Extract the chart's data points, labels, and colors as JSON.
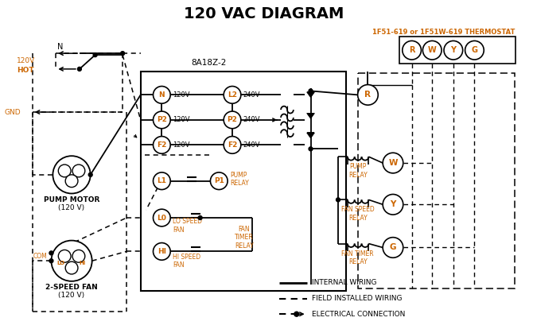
{
  "title": "120 VAC DIAGRAM",
  "title_fontsize": 14,
  "title_fontweight": "bold",
  "background_color": "#ffffff",
  "line_color": "#000000",
  "orange_color": "#cc6600",
  "thermostat_label": "1F51-619 or 1F51W-619 THERMOSTAT",
  "controller_label": "8A18Z-2",
  "legend_items": [
    {
      "label": "INTERNAL WIRING",
      "style": "solid"
    },
    {
      "label": "FIELD INSTALLED WIRING",
      "style": "dashed"
    },
    {
      "label": "ELECTRICAL CONNECTION",
      "style": "dot_arrow"
    }
  ],
  "terminal_circles": [
    "R",
    "W",
    "Y",
    "G"
  ],
  "left_terminals": [
    "N",
    "P2",
    "F2"
  ],
  "left_voltages": [
    "120V",
    "120V",
    "120V"
  ],
  "right_terminals": [
    "L2",
    "P2",
    "F2"
  ],
  "right_voltages": [
    "240V",
    "240V",
    "240V"
  ],
  "pump_motor_label1": "PUMP MOTOR",
  "pump_motor_label2": "(120 V)",
  "fan_label1": "2-SPEED FAN",
  "fan_label2": "(120 V)"
}
